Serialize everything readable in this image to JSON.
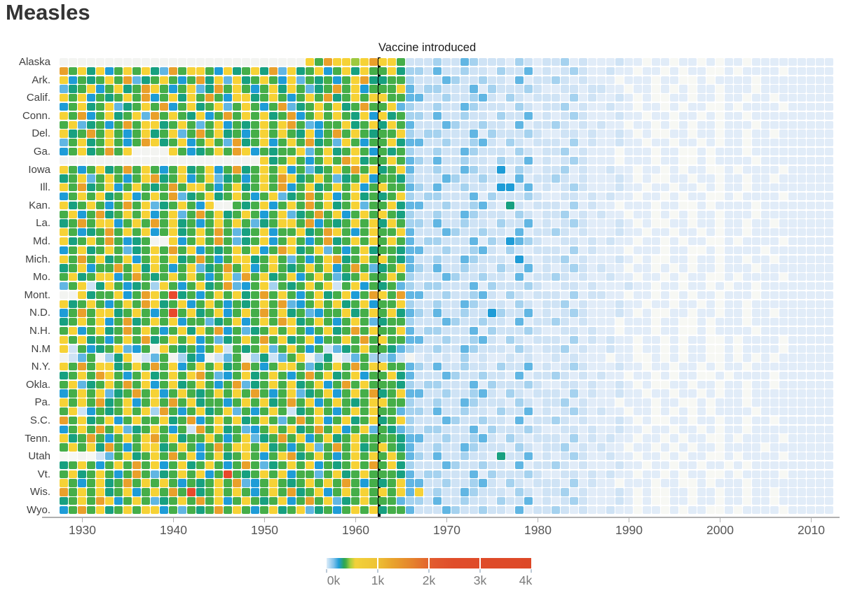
{
  "title": "Measles",
  "annotation": {
    "label": "Vaccine introduced",
    "year": 1963
  },
  "x_axis": {
    "tick_years": [
      1930,
      1940,
      1950,
      1960,
      1970,
      1980,
      1990,
      2000,
      2010
    ]
  },
  "legend": {
    "tick_labels": [
      "0k",
      "1k",
      "2k",
      "3k",
      "4k"
    ],
    "gradient_stops": [
      [
        "#dcecf9",
        0
      ],
      [
        "#7fc1ea",
        3.5
      ],
      [
        "#1e9cd7",
        6
      ],
      [
        "#2aa656",
        8.5
      ],
      [
        "#45ae49",
        9.5
      ],
      [
        "#a6cf3d",
        11.5
      ],
      [
        "#f2d13a",
        14
      ],
      [
        "#eec436",
        24
      ],
      [
        "#e9a42c",
        32
      ],
      [
        "#e5822c",
        42
      ],
      [
        "#e25a2e",
        52
      ],
      [
        "#e04d2a",
        62
      ],
      [
        "#dd4827",
        100
      ]
    ]
  },
  "chart_data": {
    "type": "heatmap",
    "title": "Measles",
    "x_start_year": 1928,
    "x_end_year": 2012,
    "vaccine_year": 1963,
    "value_unit": "cases (legend scale 0k-4k)",
    "palette": {
      "0": {
        "color": "#f3f4f1",
        "value": null
      },
      "1": {
        "color": "#f7f8f4",
        "value": 0
      },
      "2": {
        "color": "#e1ecf8",
        "value": 20
      },
      "3": {
        "color": "#cfe3f5",
        "value": 60
      },
      "4": {
        "color": "#a5d2ef",
        "value": 130
      },
      "5": {
        "color": "#61b6e3",
        "value": 220
      },
      "6": {
        "color": "#1e9cd7",
        "value": 330
      },
      "7": {
        "color": "#17a080",
        "value": 450
      },
      "8": {
        "color": "#45ae49",
        "value": 580
      },
      "9": {
        "color": "#9dc93e",
        "value": 750
      },
      "a": {
        "color": "#f6d236",
        "value": 1200
      },
      "b": {
        "color": "#e9a02b",
        "value": 2100
      },
      "c": {
        "color": "#e8492b",
        "value": 3500
      }
    },
    "rows": [
      {
        "label": "Alaska",
        "cells": "000000000000000000000000000a8baa9abaa833343354333243233423222322122122121221222222222"
      },
      {
        "label": "",
        "cells": "b8a7a68a8a75b8aa86a78a7b5a78a68a7a88a744353343324335232343223221221212211212222122222"
      },
      {
        "label": "Ark.",
        "cells": "a6878a8b578a868b7a5a78a86a587868ab778843335433433252334323222122212211212222122222222"
      },
      {
        "label": "",
        "cells": "578a68a78ba868a57b8a868a7a8578b8a6888a53443335243334322332332212212121221222122222222"
      },
      {
        "label": "Calif.",
        "cells": "a8a6878a8b68a7a8b86aa78a868a8b78a8aa8855334334532432333242322321211221221221221222222"
      },
      {
        "label": "",
        "cells": "68a78a578a8b68a78a58a868b578a8a78b88a543343354333243233423223221221212211212222122222"
      },
      {
        "label": "Conn.",
        "cells": "a8b68a78a5b8a87a68b8a8a78b68a8a87a6a7844353343324335232343222322122122121221222222222"
      },
      {
        "label": "",
        "cells": "8a57868b8aa78a858a6878a8ab85688a78a7a853335433433252334323232212212121221222122222222"
      },
      {
        "label": "Del.",
        "cells": "a78b8a868a78a58b8a7868a8a87a68b8a8788a43443335243334322332322321211221221221221222222"
      },
      {
        "label": "",
        "cells": "58a78a868ba78a68a85b78a68a8b785a8688a755334334532432333242322322122122121221222222222"
      },
      {
        "label": "Ga.",
        "cells": "68a78b8a0000a8678a8ba68788a58a78a86878433433543332432334232221222122112122212222222222"
      },
      {
        "label": "",
        "cells": "0000000000000000000000a78a868a8ba788a854353343324335232343222122212211212222122222222"
      },
      {
        "label": "Iowa",
        "cells": "a868a78b8a868a78a68b78a8a68578a8b8a78a53343354336243233423223221221212211212222122222"
      },
      {
        "label": "",
        "cells": "78a58a868ab78a68a57868a8ba78a8578a6887433354334332523343232223212112212212212212 22222"
      },
      {
        "label": "Ill.",
        "cells": "a8b78a68a878b8aa868a78a8b68a78a8a68a8854353343326635232343222322122122121221222222222"
      },
      {
        "label": "",
        "cells": "68a8a78a68a8b578a78a868a578b8a68a7878a43443335243334322332323221221212211212222122222"
      },
      {
        "label": "Kan.",
        "cells": "a78a868b8a578a86a00878a68a8b8a78a588a755334334532732333242322122212211212222122222222"
      },
      {
        "label": "",
        "cells": "8a68b78a8a68a58b8a78a868a578b8a68a8a8743343354333243233423232212212121221222122222222"
      },
      {
        "label": "La.",
        "cells": "78b8aa68a8b8a7868a8a8578aa8b6878a8a7a844353343324335232343222321211221221221221222222"
      },
      {
        "label": "",
        "cells": "a8678b8a8a68a78a8b8578a688a78ba868a88a53335433433252334323222322122122121221222222222"
      },
      {
        "label": "Md.",
        "cells": "a78a8b867800a68a8b8578a68a868b78a8a8a853443335243654322332323221221212211212222122222"
      },
      {
        "label": "",
        "cells": "68a78a8578a8b8a6878a8a68ba78a5868a7887553343345324323332423222122212211212222122222222"
      },
      {
        "label": "Mich.",
        "cells": "a8b8a78a68a8a78b868aa78a85868ab78a8a87533433543332632334232223212112212212212212 22222"
      },
      {
        "label": "",
        "cells": "78a688b8a7a868a578b8a68a878a8a68b8578a54353343324335232343232212212121221222122222222"
      },
      {
        "label": "Mo.",
        "cells": "8a78aa68b878a8a868a5b8a78a68a8578a88a843335433433252334323223221221212211212222122222"
      },
      {
        "label": "",
        "cells": "58a37a86784a868a78b568a4878a8a38a68785434433352433343223323222322122122121221222222222"
      },
      {
        "label": "Mont.",
        "cells": "00a788a68ba8c7868a8a78b8a868a78a68ba8b55334334532432333242332212212121221222122222222"
      },
      {
        "label": "",
        "cells": "a78a868a8ba78a68a86878a8b568a8a78a688a43343354333243233423222322122122121221222222222"
      },
      {
        "label": "N.D.",
        "cells": "68b8aa78a868c8a78a68a8b8a785688a78a8a754353343364335232343222321211221221221221222222"
      },
      {
        "label": "",
        "cells": "78a8a68b78a8a688578a68a8ba78a868a85788433354334332523343232221222122112122212222222222"
      },
      {
        "label": "N.H.",
        "cells": "8a68a78b8a868a7a8b68578a8a868a78b8a88a53443335243334322332322122212211212222122222222"
      },
      {
        "label": "",
        "cells": "a8a7868a8b78a8a68578a8b8a78a688a8b8a8855334334532432333242323221221212211212222122222"
      },
      {
        "label": "N.M",
        "cells": "a38678a5680a87868a3878a58a8683578a8875433433543332432334232232212212122112122221222222"
      },
      {
        "label": "",
        "cells": "0358047a035804760358047358a047035844530232324232232322323222122112121221121212122222 2"
      },
      {
        "label": "N.Y.",
        "cells": "a8b8aa78a8b8a68a8a78b868aa8578a8b8aa8854353343324335232343222322122122121221222222222"
      },
      {
        "label": "",
        "cells": "78a8ba868a78a8ab8568a78a868b8a78a688a75333543343325233432323221221212211212222122222 2"
      },
      {
        "label": "Okla.",
        "cells": "8a578a8b8a68a78a868b578a8a78a68b8a8887434433352433343223323223212112212212212212 22222"
      },
      {
        "label": "",
        "cells": "68a8a578b8a68a878a8a8b868a578a68a8b78a55334334532432333242322322122122121221222222222"
      },
      {
        "label": "Pa.",
        "cells": "a8a8b78a68a8b8a78868a8a78b8a68a878aa884334335433324323342322212221221121222122222222 2"
      },
      {
        "label": "",
        "cells": "8a36878a8a4b868a78a5868a8378a868a8a8854435334332433523234323221221212121222212222222 2"
      },
      {
        "label": "S.C.",
        "cells": "b8a78a68a88a78b68a8a78a858b8a68a78a78a4333543343325233432322232121122122122122122222 2"
      },
      {
        "label": "",
        "cells": "68a8b8a578a8683b8a78568a8a78b8a68a58754344333524333432233232232212212212122122222222 2"
      },
      {
        "label": "Tenn.",
        "cells": "a78b868a8ab8a788a868a578b8a68a78a888875533433453243233324232322122121221121222212222 2"
      },
      {
        "label": "",
        "cells": "8a8a7b868aa78a868b8aa8a7868a58b8a78a875334335433324323342323221221212122122221222222 2"
      },
      {
        "label": "Utah",
        "cells": "1101358a78a8b8a68a78a868ab78a868a8a8a8543533433273352323432232212212122112122221 22222"
      },
      {
        "label": "",
        "cells": "78a868a8b8a68a78a868b8578a8a6878a8b8a74333543343325233432322232212212212212122222222 2"
      },
      {
        "label": "Vt.",
        "cells": "8a78a868b8578a8a68c878a8a68858a78a8887534433352433343223323232212212122112122221 22222"
      },
      {
        "label": "",
        "cells": "a868a78b8a8a86878a8b568a878a8a8b86878a5533433453243233324232212221221121222122222222 2"
      },
      {
        "label": "Wis.",
        "cells": "b8a8a78a68a8b8c78a8a868a8b78a68a8a8a8a5a343354333243233423222321211221221221221222222"
      },
      {
        "label": "",
        "cells": "78a8ba68a8578a8b8a68a878a68b8a578a88854435334332433523234322232121122122122122122222 2"
      },
      {
        "label": "Wyo.",
        "cells": "68b8a78a8aa685878b8a868a78a57868a8a78853335433433252334323223221221212211212222122222"
      }
    ]
  }
}
